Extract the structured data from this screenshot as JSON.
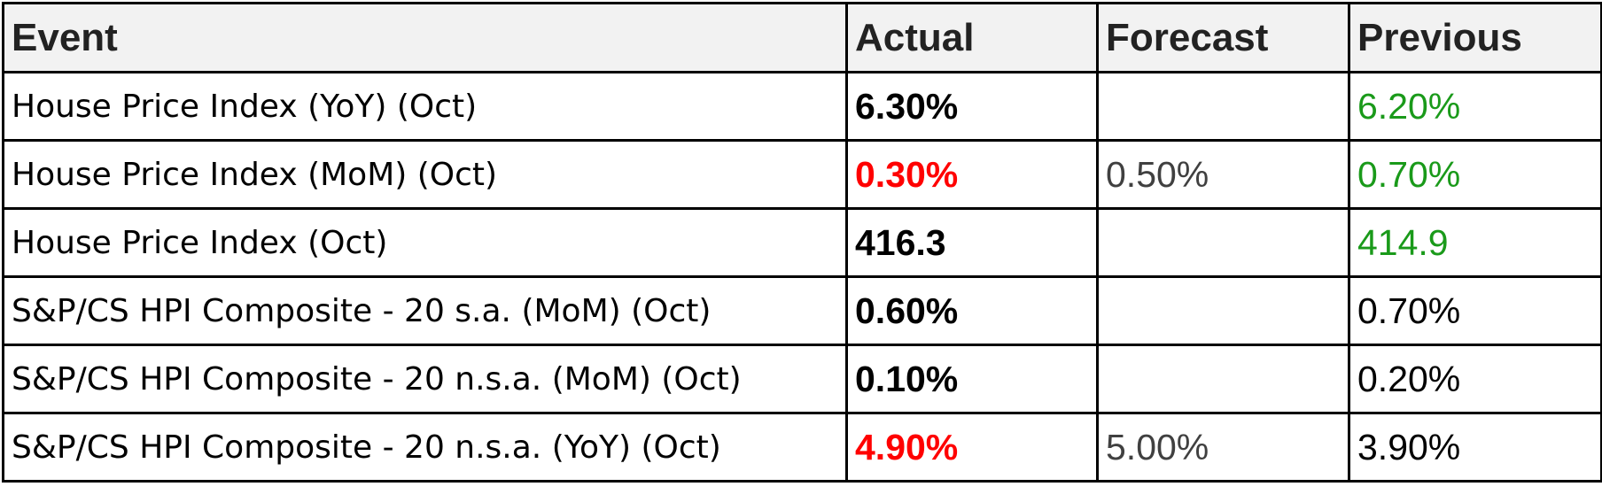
{
  "table": {
    "header": [
      "Event",
      "Actual",
      "Forecast",
      "Previous"
    ],
    "rows": [
      {
        "cells": [
          "House Price Index (YoY) (Oct)",
          "6.30%",
          null,
          "6.20%"
        ],
        "colors": [
          "#000000",
          "#000000",
          "#404040",
          "#1a9a1a"
        ]
      },
      {
        "cells": [
          "House Price Index (MoM) (Oct)",
          "0.30%",
          "0.50%",
          "0.70%"
        ],
        "colors": [
          "#000000",
          "#ff0000",
          "#404040",
          "#1a9a1a"
        ]
      },
      {
        "cells": [
          "House Price Index (Oct)",
          "416.3",
          null,
          "414.9"
        ],
        "colors": [
          "#000000",
          "#000000",
          "#404040",
          "#1a9a1a"
        ]
      },
      {
        "cells": [
          "S&P/CS HPI Composite - 20 s.a. (MoM) (Oct)",
          "0.60%",
          null,
          "0.70%"
        ],
        "colors": [
          "#000000",
          "#000000",
          "#404040",
          "#000000"
        ]
      },
      {
        "cells": [
          "S&P/CS HPI Composite - 20 n.s.a. (MoM) (Oct)",
          "0.10%",
          null,
          "0.20%"
        ],
        "colors": [
          "#000000",
          "#000000",
          "#404040",
          "#000000"
        ]
      },
      {
        "cells": [
          "S&P/CS HPI Composite - 20 n.s.a. (YoY) (Oct)",
          "4.90%",
          "5.00%",
          "3.90%"
        ],
        "colors": [
          "#000000",
          "#ff0000",
          "#404040",
          "#000000"
        ]
      }
    ]
  }
}
